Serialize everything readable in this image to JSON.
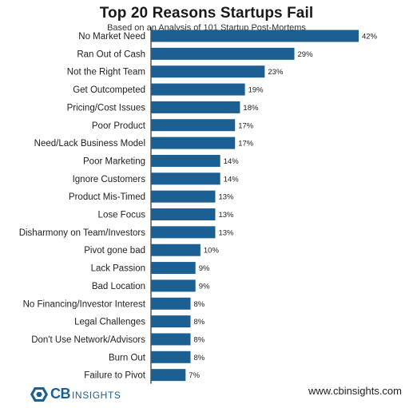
{
  "chart_data": {
    "type": "bar",
    "orientation": "horizontal",
    "title": "Top 20 Reasons Startups Fail",
    "subtitle": "Based on an Analysis of 101 Startup Post-Mortems",
    "categories": [
      "No Market Need",
      "Ran Out of Cash",
      "Not the Right Team",
      "Get Outcompeted",
      "Pricing/Cost Issues",
      "Poor Product",
      "Need/Lack Business Model",
      "Poor Marketing",
      "Ignore Customers",
      "Product Mis-Timed",
      "Lose Focus",
      "Disharmony on Team/Investors",
      "Pivot gone bad",
      "Lack Passion",
      "Bad Location",
      "No Financing/Investor Interest",
      "Legal Challenges",
      "Don't Use Network/Advisors",
      "Burn Out",
      "Failure to Pivot"
    ],
    "values": [
      42,
      29,
      23,
      19,
      18,
      17,
      17,
      14,
      14,
      13,
      13,
      13,
      10,
      9,
      9,
      8,
      8,
      8,
      8,
      7
    ],
    "value_labels": [
      "42%",
      "29%",
      "23%",
      "19%",
      "18%",
      "17%",
      "17%",
      "14%",
      "14%",
      "13%",
      "13%",
      "13%",
      "10%",
      "9%",
      "9%",
      "8%",
      "8%",
      "8%",
      "8%",
      "7%"
    ],
    "xlabel": "",
    "ylabel": "",
    "xlim": [
      0,
      42
    ],
    "grid": false,
    "bar_color": "#1c5f92"
  },
  "footer": {
    "logo_cb": "CB",
    "logo_insights": "INSIGHTS",
    "url": "www.cbinsights.com"
  }
}
